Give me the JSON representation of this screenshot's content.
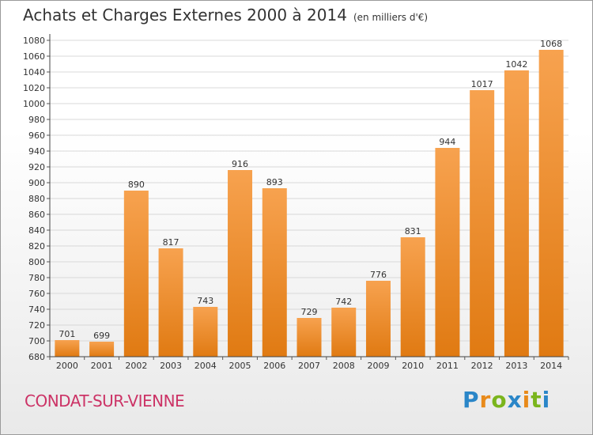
{
  "title": "Achats et Charges Externes 2000 à 2014",
  "unit_note": "(en milliers d'€)",
  "town": "CONDAT-SUR-VIENNE",
  "logo": {
    "text": "Proxiti",
    "letters": [
      {
        "char": "P",
        "color": "#2a86c8"
      },
      {
        "char": "r",
        "color": "#e88a1a"
      },
      {
        "char": "o",
        "color": "#7ab51d"
      },
      {
        "char": "x",
        "color": "#2a86c8"
      },
      {
        "char": "i",
        "color": "#e88a1a"
      },
      {
        "char": "t",
        "color": "#7ab51d"
      },
      {
        "char": "i",
        "color": "#2a86c8"
      }
    ]
  },
  "colors": {
    "bar_light": "#f7a24f",
    "bar_dark": "#e07a12",
    "grid": "#d8d8d8",
    "title": "#333333",
    "town": "#cc3366"
  },
  "chart_data": {
    "type": "bar",
    "categories": [
      "2000",
      "2001",
      "2002",
      "2003",
      "2004",
      "2005",
      "2006",
      "2007",
      "2008",
      "2009",
      "2010",
      "2011",
      "2012",
      "2013",
      "2014"
    ],
    "values": [
      701,
      699,
      890,
      817,
      743,
      916,
      893,
      729,
      742,
      776,
      831,
      944,
      1017,
      1042,
      1068
    ],
    "ylim": [
      680,
      1080
    ],
    "yticks": [
      680,
      700,
      720,
      740,
      760,
      780,
      800,
      820,
      840,
      860,
      880,
      900,
      920,
      940,
      960,
      980,
      1000,
      1020,
      1040,
      1060,
      1080
    ],
    "grid": true,
    "data_labels": true
  }
}
